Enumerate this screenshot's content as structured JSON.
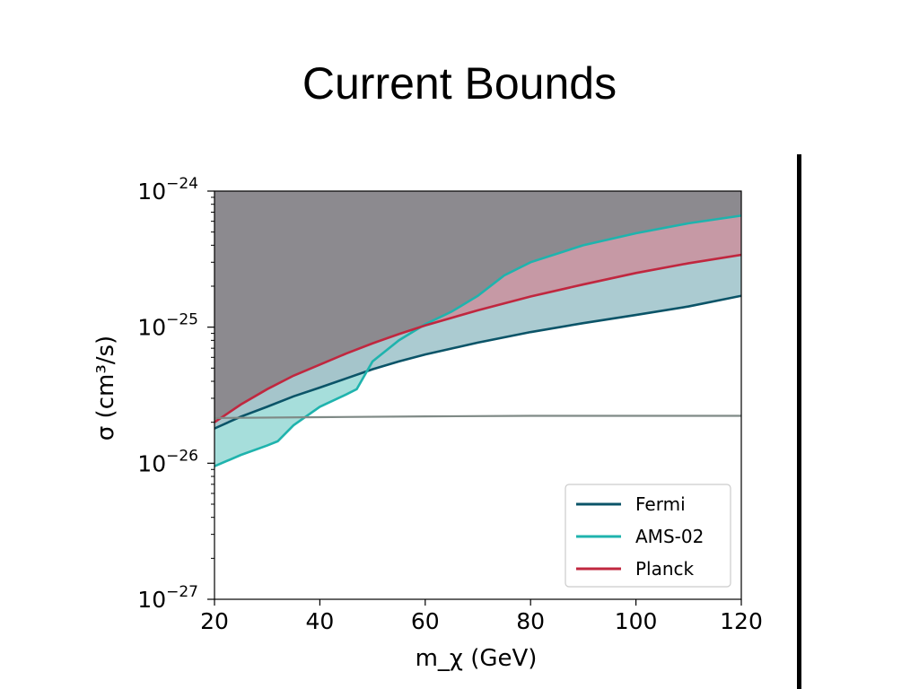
{
  "slide": {
    "title": "Current Bounds"
  },
  "chart_data": {
    "type": "line",
    "title": "",
    "xlabel": "m_χ (GeV)",
    "ylabel": "σ (cm³/s)",
    "xlim": [
      20,
      120
    ],
    "ylim": [
      1e-27,
      1e-24
    ],
    "yscale": "log",
    "xticks": [
      20,
      40,
      60,
      80,
      100,
      120
    ],
    "yticks": [
      {
        "value": 1e-27,
        "label": "10",
        "exp": "−27"
      },
      {
        "value": 1e-26,
        "label": "10",
        "exp": "−26"
      },
      {
        "value": 1e-25,
        "label": "10",
        "exp": "−25"
      },
      {
        "value": 1e-24,
        "label": "10",
        "exp": "−24"
      }
    ],
    "grid": false,
    "legend_position": "lower-right",
    "excluded_region_color": "#8c8a8f",
    "series": [
      {
        "name": "Fermi",
        "color": "#0b5468",
        "x": [
          20,
          25,
          30,
          35,
          40,
          45,
          50,
          55,
          60,
          70,
          80,
          90,
          100,
          110,
          120
        ],
        "y": [
          1.8e-26,
          2.2e-26,
          2.6e-26,
          3.1e-26,
          3.6e-26,
          4.2e-26,
          4.9e-26,
          5.6e-26,
          6.3e-26,
          7.7e-26,
          9.2e-26,
          1.07e-25,
          1.23e-25,
          1.42e-25,
          1.7e-25
        ]
      },
      {
        "name": "AMS-02",
        "color": "#1fb3ad",
        "x": [
          20,
          25,
          30,
          32,
          35,
          40,
          45,
          47,
          50,
          55,
          60,
          65,
          70,
          75,
          80,
          90,
          100,
          110,
          120
        ],
        "y": [
          9.5e-27,
          1.15e-26,
          1.35e-26,
          1.45e-26,
          1.9e-26,
          2.6e-26,
          3.2e-26,
          3.5e-26,
          5.6e-26,
          8e-26,
          1.05e-25,
          1.3e-25,
          1.7e-25,
          2.4e-25,
          3e-25,
          4e-25,
          4.9e-25,
          5.8e-25,
          6.6e-25
        ]
      },
      {
        "name": "Planck",
        "color": "#c0273f",
        "x": [
          20,
          25,
          30,
          35,
          40,
          45,
          50,
          55,
          60,
          70,
          80,
          90,
          100,
          110,
          120
        ],
        "y": [
          2e-26,
          2.7e-26,
          3.5e-26,
          4.4e-26,
          5.3e-26,
          6.4e-26,
          7.6e-26,
          8.9e-26,
          1.03e-25,
          1.33e-25,
          1.68e-25,
          2.06e-25,
          2.5e-25,
          2.95e-25,
          3.4e-25
        ]
      },
      {
        "name": "",
        "color": "#7f8a86",
        "x": [
          20,
          40,
          60,
          80,
          100,
          120
        ],
        "y": [
          2.15e-26,
          2.18e-26,
          2.21e-26,
          2.23e-26,
          2.23e-26,
          2.23e-26
        ]
      }
    ],
    "bands": [
      {
        "between": [
          "Fermi",
          "Planck"
        ],
        "color": "#a6c8cf"
      },
      {
        "between": [
          "AMS-02",
          "Planck"
        ],
        "above": "Planck",
        "color": "#c99aa6"
      },
      {
        "between": [
          "AMS-02",
          "Fermi"
        ],
        "below": "Fermi",
        "color": "#a8e3df"
      }
    ]
  }
}
